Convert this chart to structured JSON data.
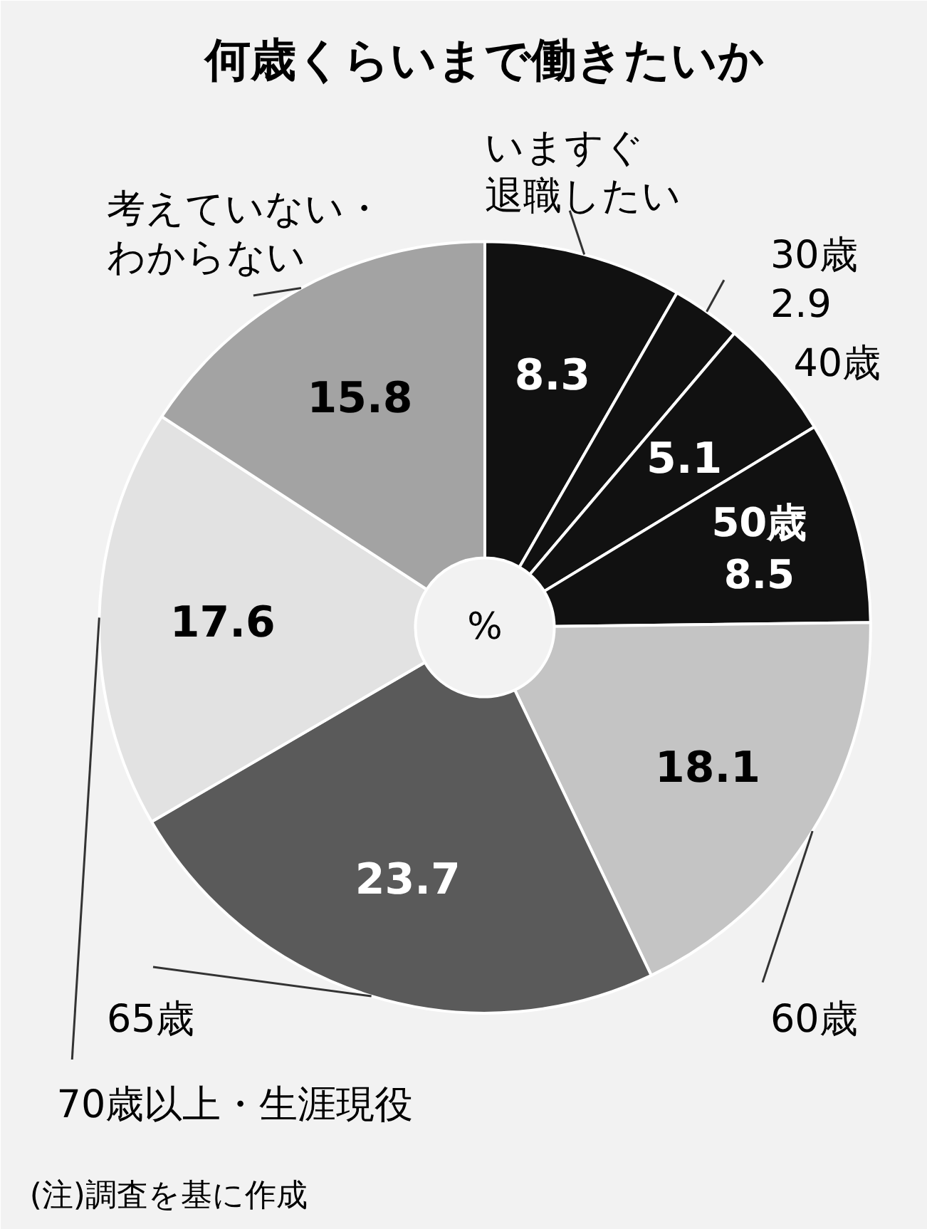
{
  "chart_data": {
    "type": "donut",
    "title": "何歳くらいまで働きたいか",
    "categories": [
      "いますぐ退職したい",
      "30歳",
      "40歳",
      "50歳",
      "60歳",
      "65歳",
      "70歳以上・生涯現役",
      "考えていない・わからない"
    ],
    "values": [
      8.3,
      2.9,
      5.1,
      8.5,
      18.1,
      23.7,
      17.6,
      15.8
    ],
    "colors": [
      "#111111",
      "#111111",
      "#111111",
      "#111111",
      "#c4c4c4",
      "#5a5a5a",
      "#e2e2e2",
      "#a3a3a3"
    ],
    "data_labels": true,
    "legend": false,
    "annotations": [
      "%",
      "(注)調査を基に作成"
    ]
  }
}
